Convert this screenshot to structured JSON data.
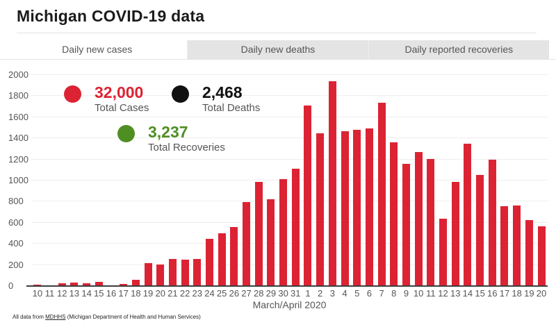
{
  "header": {
    "title": "Michigan COVID-19 data"
  },
  "tabs": [
    {
      "label": "Daily new cases",
      "active": true
    },
    {
      "label": "Daily new deaths",
      "active": false
    },
    {
      "label": "Daily reported recoveries",
      "active": false
    }
  ],
  "stats": [
    {
      "value": "32,000",
      "label": "Total Cases",
      "color": "#dc2333"
    },
    {
      "value": "2,468",
      "label": "Total Deaths",
      "color": "#111111"
    },
    {
      "value": "3,237",
      "label": "Total Recoveries",
      "color": "#4f8e23"
    }
  ],
  "chart_data": {
    "type": "bar",
    "title": "Michigan COVID-19 data — Daily new cases",
    "xlabel": "March/April 2020",
    "ylabel": "",
    "ylim": [
      0,
      2000
    ],
    "yticks": [
      0,
      200,
      400,
      600,
      800,
      1000,
      1200,
      1400,
      1600,
      1800,
      2000
    ],
    "grid": "horizontal",
    "legend_position": "none",
    "bar_color": "#dc2333",
    "categories": [
      "10",
      "11",
      "12",
      "13",
      "14",
      "15",
      "16",
      "17",
      "18",
      "19",
      "20",
      "21",
      "22",
      "23",
      "24",
      "25",
      "26",
      "27",
      "28",
      "29",
      "30",
      "31",
      "1",
      "2",
      "3",
      "4",
      "5",
      "6",
      "7",
      "8",
      "9",
      "10",
      "11",
      "12",
      "13",
      "14",
      "15",
      "16",
      "17",
      "18",
      "19",
      "20"
    ],
    "values": [
      10,
      5,
      25,
      33,
      25,
      42,
      5,
      20,
      57,
      220,
      205,
      255,
      250,
      255,
      445,
      500,
      560,
      795,
      990,
      825,
      1010,
      1110,
      1710,
      1450,
      1940,
      1470,
      1480,
      1495,
      1740,
      1365,
      1155,
      1270,
      1205,
      640,
      985,
      1350,
      1050,
      1195,
      755,
      760,
      625,
      565
    ]
  },
  "footer": {
    "prefix": "All data from ",
    "link": "MDHHS",
    "suffix": " (Michigan Department of Health and Human Services)"
  }
}
